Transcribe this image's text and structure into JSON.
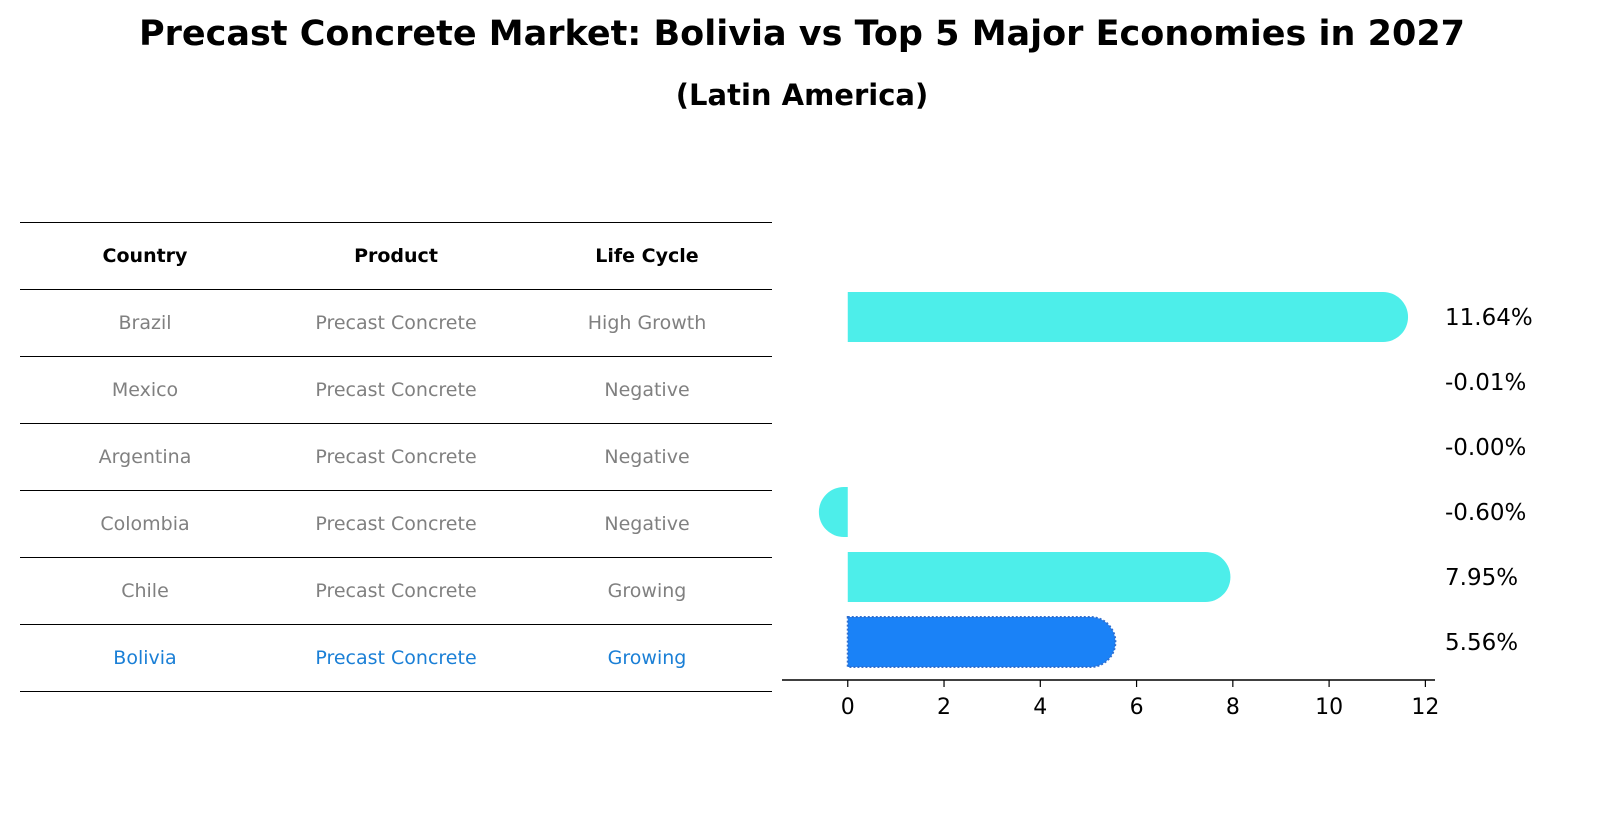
{
  "title": "Precast Concrete Market: Bolivia vs Top 5 Major Economies in 2027",
  "subtitle": "(Latin America)",
  "table": {
    "headers": [
      "Country",
      "Product",
      "Life Cycle"
    ],
    "rows": [
      {
        "country": "Brazil",
        "product": "Precast Concrete",
        "life_cycle": "High Growth"
      },
      {
        "country": "Mexico",
        "product": "Precast Concrete",
        "life_cycle": "Negative"
      },
      {
        "country": "Argentina",
        "product": "Precast Concrete",
        "life_cycle": "Negative"
      },
      {
        "country": "Colombia",
        "product": "Precast Concrete",
        "life_cycle": "Negative"
      },
      {
        "country": "Chile",
        "product": "Precast Concrete",
        "life_cycle": "Growing"
      },
      {
        "country": "Bolivia",
        "product": "Precast Concrete",
        "life_cycle": "Growing"
      }
    ],
    "highlight_color": "#1a7fd6",
    "muted_color": "#808080"
  },
  "chart_data": {
    "type": "bar",
    "orientation": "horizontal",
    "categories": [
      "Brazil",
      "Mexico",
      "Argentina",
      "Colombia",
      "Chile",
      "Bolivia"
    ],
    "values": [
      11.64,
      -0.01,
      -0.0,
      -0.6,
      7.95,
      5.56
    ],
    "value_labels": [
      "11.64%",
      "-0.01%",
      "-0.00%",
      "-0.60%",
      "7.95%",
      "5.56%"
    ],
    "highlight_index": 5,
    "colors": {
      "default": "#4deeea",
      "highlight": "#1a82f7"
    },
    "xlim": [
      -1.2,
      12.2
    ],
    "xticks": [
      0,
      2,
      4,
      6,
      8,
      10,
      12
    ],
    "xlabel": "",
    "ylabel": "",
    "grid": false
  }
}
